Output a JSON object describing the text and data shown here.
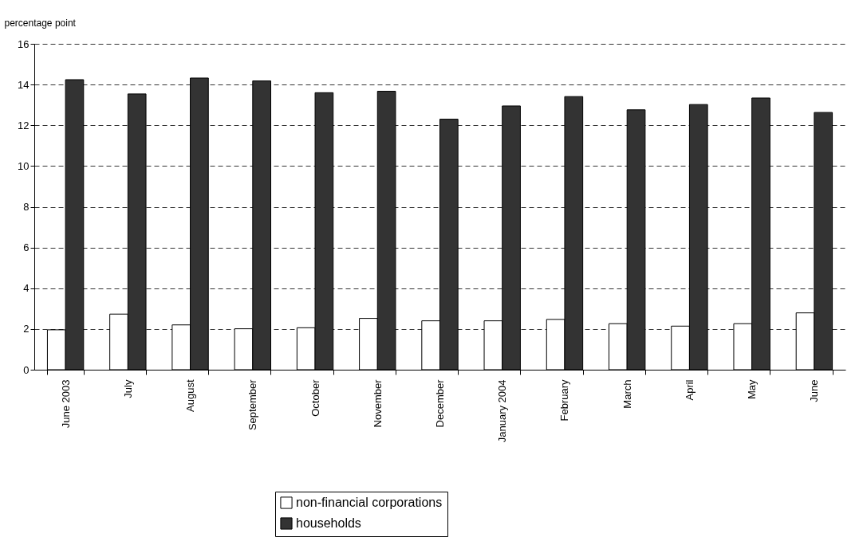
{
  "chart_data": {
    "type": "bar",
    "ylabel": "percentage point",
    "categories": [
      "June 2003",
      "July",
      "August",
      "September",
      "October",
      "November",
      "December",
      "January 2004",
      "February",
      "March",
      "April",
      "May",
      "June"
    ],
    "series": [
      {
        "name": "non-financial corporations",
        "color": "#ffffff",
        "values": [
          1.96,
          2.73,
          2.2,
          2.01,
          2.06,
          2.52,
          2.4,
          2.4,
          2.47,
          2.26,
          2.14,
          2.26,
          2.79
        ]
      },
      {
        "name": "households",
        "color": "#333333",
        "values": [
          14.24,
          13.54,
          14.32,
          14.18,
          13.6,
          13.67,
          12.3,
          12.95,
          13.41,
          12.76,
          13.02,
          13.34,
          12.63
        ]
      }
    ],
    "ylim": [
      0,
      16
    ],
    "yticks": [
      0,
      2,
      4,
      6,
      8,
      10,
      12,
      14,
      16
    ],
    "grid": "y",
    "legend": "bottom"
  }
}
